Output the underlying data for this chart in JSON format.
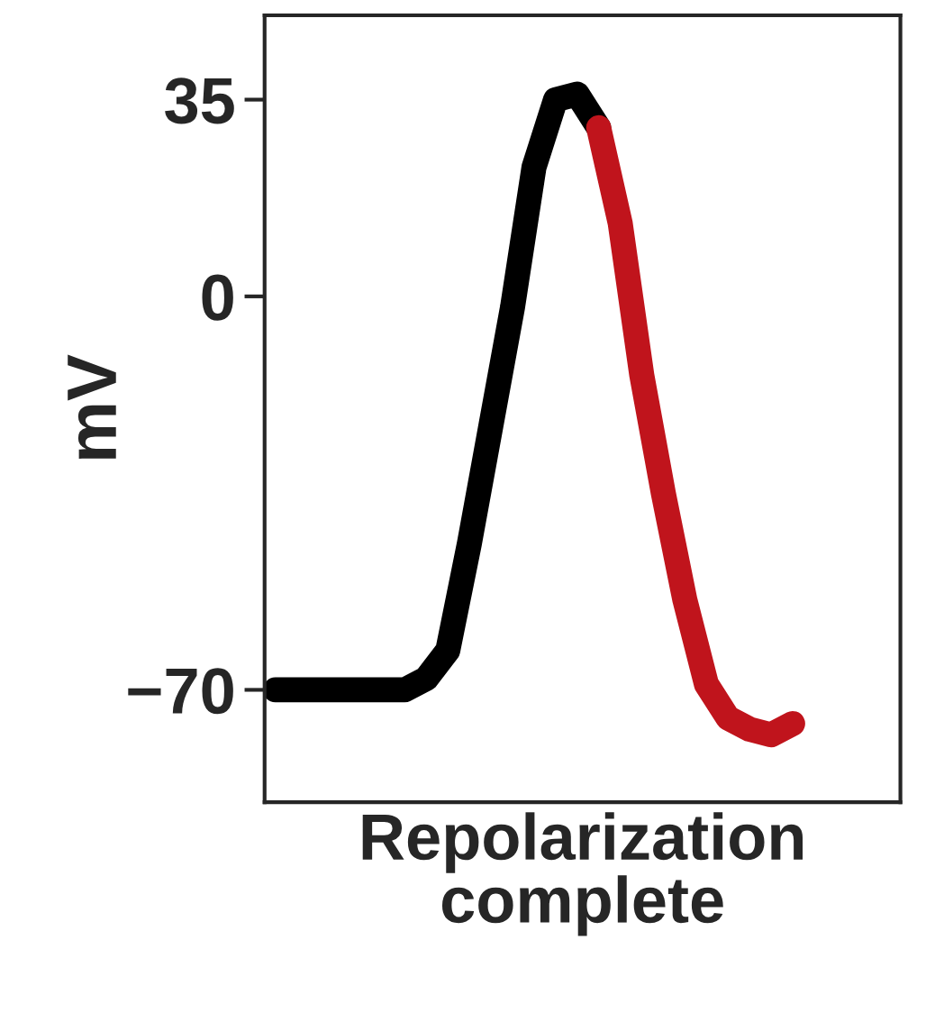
{
  "chart_data": {
    "type": "line",
    "ylabel": "mV",
    "xlabel": "Repolarization\ncomplete",
    "categories": [
      null,
      null,
      null,
      null,
      null,
      null,
      null,
      null,
      null,
      null,
      null,
      null,
      null,
      null,
      null,
      null,
      null,
      null,
      null,
      null,
      null,
      null,
      null,
      null,
      null
    ],
    "series": [
      {
        "color": "#000000",
        "values": [
          -70,
          -70,
          -70,
          -70,
          -70,
          -70,
          -70,
          -68,
          -63,
          -44,
          -23,
          -2,
          23,
          35,
          36,
          30,
          null,
          null,
          null,
          null,
          null,
          null,
          null,
          null,
          null
        ]
      },
      {
        "color": "#c0141c",
        "values": [
          null,
          null,
          null,
          null,
          null,
          null,
          null,
          null,
          null,
          null,
          null,
          null,
          null,
          null,
          null,
          30,
          13,
          -14,
          -35,
          -54,
          -69,
          -75,
          -77,
          -78,
          -76
        ]
      }
    ],
    "ylim": [
      -90,
      50
    ],
    "yticks": [
      35,
      0,
      {
        "value": -70,
        "label": "−70"
      }
    ],
    "tick_labels": "y",
    "grid": false,
    "legend": false,
    "line_style": "solid"
  }
}
